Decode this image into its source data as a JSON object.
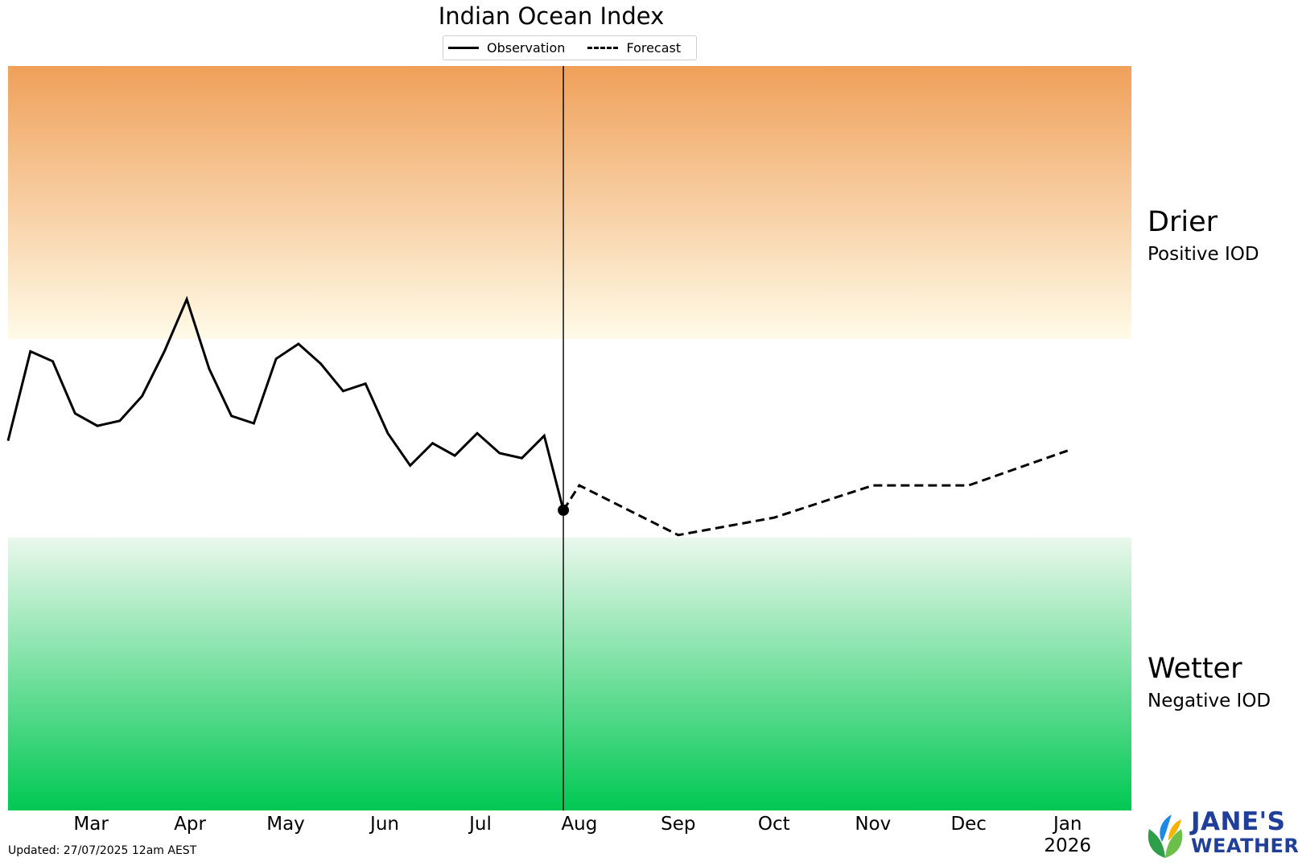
{
  "chart_data": {
    "type": "line",
    "title": "Indian Ocean Index",
    "legend": {
      "placement": "top-center",
      "entries": [
        {
          "label": "Observation",
          "style": "solid"
        },
        {
          "label": "Forecast",
          "style": "dashed"
        }
      ]
    },
    "x_ticks": [
      {
        "label": "Mar",
        "date": "2025-03-01"
      },
      {
        "label": "Apr",
        "date": "2025-04-01"
      },
      {
        "label": "May",
        "date": "2025-05-01"
      },
      {
        "label": "Jun",
        "date": "2025-06-01"
      },
      {
        "label": "Jul",
        "date": "2025-07-01"
      },
      {
        "label": "Aug",
        "date": "2025-08-01"
      },
      {
        "label": "Sep",
        "date": "2025-09-01"
      },
      {
        "label": "Oct",
        "date": "2025-10-01"
      },
      {
        "label": "Nov",
        "date": "2025-11-01"
      },
      {
        "label": "Dec",
        "date": "2025-12-01"
      },
      {
        "label": "Jan\n2026",
        "date": "2026-01-01"
      }
    ],
    "xlim": [
      "2025-02-03",
      "2026-01-21"
    ],
    "ylim": [
      -1.5,
      1.5
    ],
    "y_axis_labels_shown": false,
    "grid": false,
    "bands": {
      "positive_threshold": 0.4,
      "negative_threshold": -0.4,
      "upper": {
        "title": "Drier",
        "subtitle": "Positive IOD",
        "color_top": "#f0a05a",
        "color_bottom": "#fffbe8"
      },
      "lower": {
        "title": "Wetter",
        "subtitle": "Negative IOD",
        "color_top": "#eaf8ec",
        "color_bottom": "#00c853"
      }
    },
    "current_date_marker": "2025-07-27",
    "series": [
      {
        "name": "Observation",
        "style": "solid",
        "color": "#000000",
        "points": [
          [
            "2025-02-03",
            -0.01
          ],
          [
            "2025-02-10",
            0.35
          ],
          [
            "2025-02-17",
            0.31
          ],
          [
            "2025-02-24",
            0.1
          ],
          [
            "2025-03-03",
            0.05
          ],
          [
            "2025-03-10",
            0.07
          ],
          [
            "2025-03-17",
            0.17
          ],
          [
            "2025-03-24",
            0.35
          ],
          [
            "2025-03-31",
            0.56
          ],
          [
            "2025-04-07",
            0.28
          ],
          [
            "2025-04-14",
            0.09
          ],
          [
            "2025-04-21",
            0.06
          ],
          [
            "2025-04-28",
            0.32
          ],
          [
            "2025-05-05",
            0.38
          ],
          [
            "2025-05-12",
            0.3
          ],
          [
            "2025-05-19",
            0.19
          ],
          [
            "2025-05-26",
            0.22
          ],
          [
            "2025-06-02",
            0.02
          ],
          [
            "2025-06-09",
            -0.11
          ],
          [
            "2025-06-16",
            -0.02
          ],
          [
            "2025-06-23",
            -0.07
          ],
          [
            "2025-06-30",
            0.02
          ],
          [
            "2025-07-07",
            -0.06
          ],
          [
            "2025-07-14",
            -0.08
          ],
          [
            "2025-07-21",
            0.01
          ],
          [
            "2025-07-27",
            -0.29
          ]
        ]
      },
      {
        "name": "Forecast",
        "style": "dashed",
        "color": "#000000",
        "points": [
          [
            "2025-07-27",
            -0.29
          ],
          [
            "2025-08-01",
            -0.19
          ],
          [
            "2025-09-01",
            -0.39
          ],
          [
            "2025-10-01",
            -0.32
          ],
          [
            "2025-11-01",
            -0.19
          ],
          [
            "2025-12-01",
            -0.19
          ],
          [
            "2026-01-01",
            -0.05
          ]
        ]
      }
    ]
  },
  "footer": {
    "updated": "Updated: 27/07/2025 12am AEST"
  },
  "logo": {
    "line1": "JANE'S",
    "line2": "WEATHER",
    "color": "#1f3f99"
  }
}
